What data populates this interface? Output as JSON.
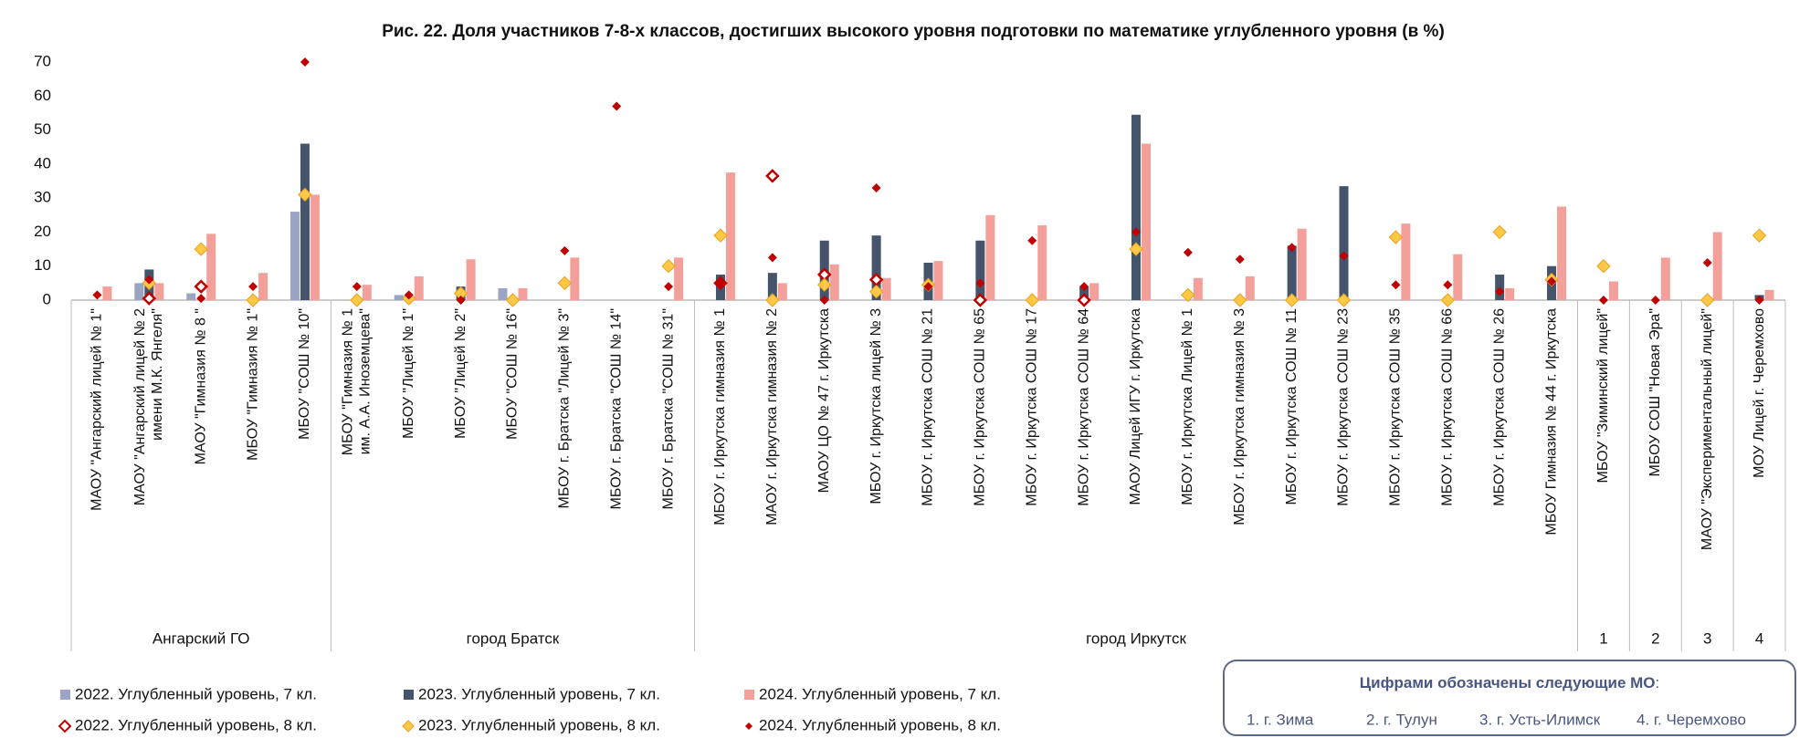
{
  "chart_data": {
    "type": "bar",
    "title": "Рис. 22. Доля участников 7-8-х классов, достигших высокого уровня подготовки по математике углубленного уровня (в %)",
    "categories": [
      [
        "МАОУ \"Ангарский лицей № 1\""
      ],
      [
        "МАОУ \"Ангарский лицей № 2",
        "имени М.К. Янгеля\""
      ],
      [
        "МАОУ \"Гимназия № 8 \""
      ],
      [
        "МБОУ \"Гимназия № 1\""
      ],
      [
        "МБОУ \"СОШ № 10\""
      ],
      [
        "МБОУ \"Гимназия № 1",
        "им. А.А. Иноземцева\""
      ],
      [
        "МБОУ \"Лицей № 1\""
      ],
      [
        "МБОУ \"Лицей № 2\""
      ],
      [
        "МБОУ \"СОШ № 16\""
      ],
      [
        "МБОУ г. Братска \"Лицей № 3\""
      ],
      [
        "МБОУ г. Братска \"СОШ № 14\""
      ],
      [
        "МБОУ г. Братска \"СОШ № 31\""
      ],
      [
        "МБОУ г. Иркутска гимназия № 1"
      ],
      [
        "МАОУ г. Иркутска гимназия № 2"
      ],
      [
        "МАОУ ЦО № 47 г. Иркутска"
      ],
      [
        "МБОУ г. Иркутска лицей № 3"
      ],
      [
        "МБОУ г. Иркутска СОШ № 21"
      ],
      [
        "МБОУ г. Иркутска СОШ № 65"
      ],
      [
        "МБОУ г. Иркутска СОШ № 17"
      ],
      [
        "МБОУ г. Иркутска СОШ № 64"
      ],
      [
        "МАОУ Лицей ИГУ г. Иркутска"
      ],
      [
        "МБОУ г. Иркутска Лицей № 1"
      ],
      [
        "МБОУ г. Иркутска гимназия № 3"
      ],
      [
        "МБОУ г. Иркутска СОШ № 11"
      ],
      [
        "МБОУ г. Иркутска СОШ № 23"
      ],
      [
        "МБОУ г. Иркутска СОШ № 35"
      ],
      [
        "МБОУ г. Иркутска СОШ № 66"
      ],
      [
        "МБОУ г. Иркутска СОШ № 26"
      ],
      [
        "МБОУ Гимназия № 44 г. Иркутска"
      ],
      [
        "МБОУ \"Зиминский лицей\""
      ],
      [
        "МБОУ СОШ \"Новая Эра\""
      ],
      [
        "МАОУ \"Экспериментальный лицей\""
      ],
      [
        "МОУ Лицей г. Черемхово"
      ]
    ],
    "groups": [
      {
        "label": "Ангарский ГО",
        "size": 5
      },
      {
        "label": "город Братск",
        "size": 7
      },
      {
        "label": "город Иркутск",
        "size": 17
      },
      {
        "label": "1",
        "size": 1
      },
      {
        "label": "2",
        "size": 1
      },
      {
        "label": "3",
        "size": 1
      },
      {
        "label": "4",
        "size": 1
      }
    ],
    "series": [
      {
        "name": "2022. Углубленный уровень,  7 кл.",
        "kind": "bar",
        "color": "#9aa5c4",
        "values": [
          null,
          5,
          2,
          null,
          26,
          null,
          1.5,
          null,
          3.5,
          null,
          null,
          null,
          null,
          null,
          null,
          null,
          null,
          null,
          null,
          null,
          null,
          null,
          null,
          null,
          null,
          null,
          null,
          null,
          null,
          null,
          null,
          null,
          null
        ]
      },
      {
        "name": "2023. Углубленный уровень,  7 кл.",
        "kind": "bar",
        "color": "#44546a",
        "values": [
          null,
          9,
          null,
          null,
          46,
          null,
          null,
          4,
          null,
          null,
          null,
          null,
          7.5,
          8,
          17.5,
          19,
          11,
          17.5,
          null,
          4,
          54.5,
          null,
          null,
          16,
          33.5,
          null,
          null,
          7.5,
          10,
          null,
          null,
          null,
          1.5
        ]
      },
      {
        "name": "2024. Углубленный уровень,  7 кл.",
        "kind": "bar",
        "color": "#f4a09a",
        "values": [
          4,
          5,
          19.5,
          8,
          31,
          4.5,
          7,
          12,
          3.5,
          12.5,
          null,
          12.5,
          37.5,
          5,
          10.5,
          6.5,
          11.5,
          25,
          22,
          5,
          46,
          6.5,
          7,
          21,
          null,
          22.5,
          13.5,
          3.5,
          27.5,
          5.5,
          12.5,
          20,
          3
        ]
      },
      {
        "name": "2022. Углубленный уровень,  8 кл.",
        "kind": "marker",
        "marker": "open",
        "color": "#c00000",
        "values": [
          null,
          0.5,
          4,
          null,
          null,
          null,
          null,
          null,
          null,
          null,
          null,
          null,
          5,
          36.5,
          7.5,
          6,
          null,
          0,
          null,
          0,
          null,
          null,
          null,
          null,
          null,
          null,
          null,
          null,
          null,
          null,
          null,
          null,
          null
        ]
      },
      {
        "name": "2023. Углубленный уровень,  8 кл.",
        "kind": "marker",
        "marker": "filled",
        "color": "#ffc845",
        "values": [
          null,
          5,
          15,
          0,
          31,
          0,
          0.5,
          2,
          0,
          5,
          null,
          10,
          19,
          0,
          4.5,
          2.5,
          4.5,
          null,
          0,
          null,
          15,
          1.5,
          0,
          0,
          0,
          18.5,
          0,
          20,
          6,
          10,
          null,
          0,
          19
        ]
      },
      {
        "name": "2024. Углубленный уровень,  8 кл.",
        "kind": "marker",
        "marker": "small",
        "color": "#c00000",
        "values": [
          1.5,
          6,
          0.5,
          4,
          70,
          4,
          1.5,
          0,
          null,
          14.5,
          57,
          4,
          5,
          12.5,
          0,
          33,
          4,
          5,
          17.5,
          4,
          20,
          14,
          12,
          15.5,
          13,
          4.5,
          4.5,
          2.5,
          5.5,
          0,
          0,
          11,
          0
        ]
      }
    ],
    "ylim": [
      0,
      70
    ],
    "yticks": [
      0,
      10,
      20,
      30,
      40,
      50,
      60,
      70
    ],
    "grid": false,
    "legend": "bottom",
    "note": {
      "title": "Цифрами обозначены следующие МО",
      "title_suffix": ":",
      "items": [
        "1. г. Зима",
        "2. г. Тулун",
        "3. г. Усть-Илимск",
        "4. г. Черемхово"
      ]
    }
  }
}
